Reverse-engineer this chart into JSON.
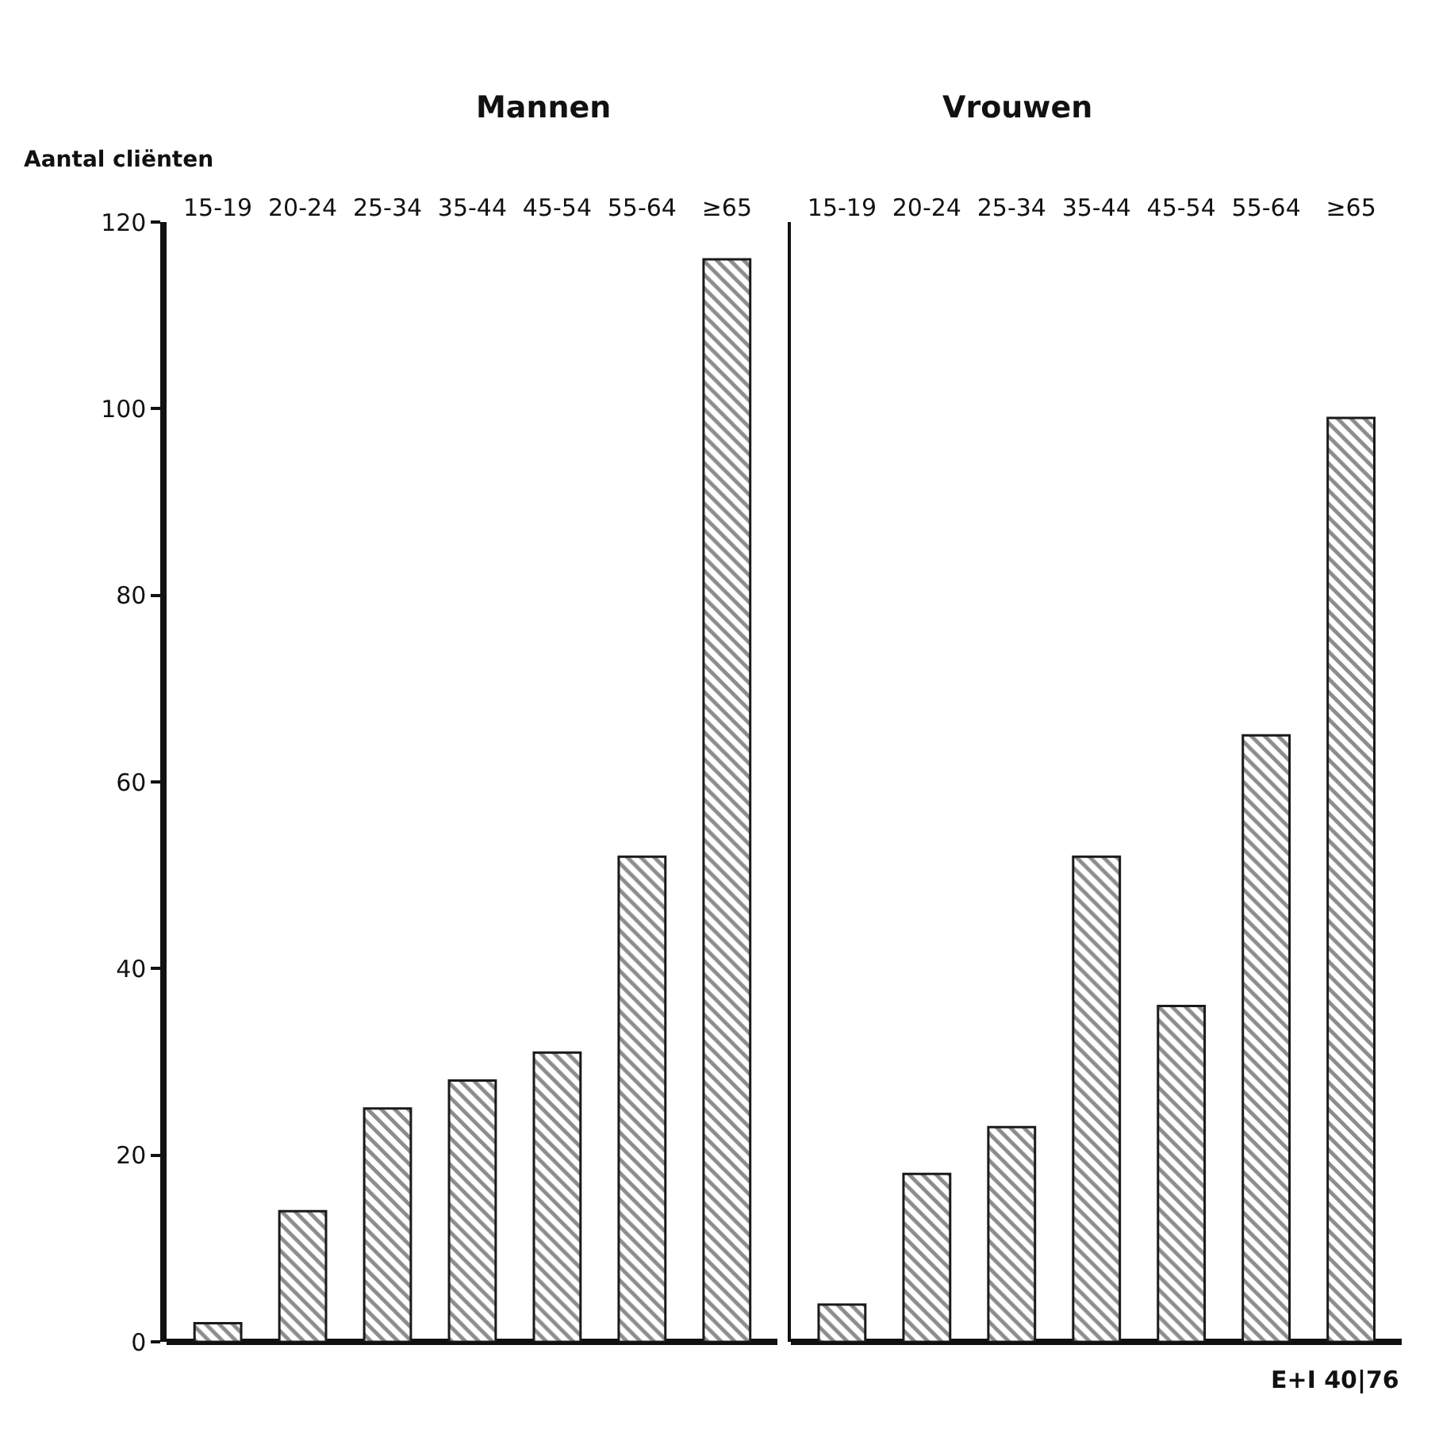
{
  "chart_data": [
    {
      "type": "bar",
      "title": "Mannen",
      "ylabel": "Aantal cliënten",
      "categories": [
        "15-19",
        "20-24",
        "25-34",
        "35-44",
        "45-54",
        "55-64",
        "≥65"
      ],
      "series": [
        {
          "color": "#1a1a1a",
          "values": [
            2,
            14,
            25,
            28,
            31,
            52,
            116
          ]
        }
      ],
      "ylim": [
        0,
        120
      ],
      "yticks": [
        0,
        20,
        40,
        60,
        80,
        100,
        120
      ]
    },
    {
      "type": "bar",
      "title": "Vrouwen",
      "categories": [
        "15-19",
        "20-24",
        "25-34",
        "35-44",
        "45-54",
        "55-64",
        "≥65"
      ],
      "series": [
        {
          "color": "#1a1a1a",
          "values": [
            4,
            18,
            23,
            52,
            36,
            65,
            99
          ]
        }
      ],
      "ylim": [
        0,
        120
      ],
      "yticks": [
        0,
        20,
        40,
        60,
        80,
        100,
        120
      ],
      "tick_labels": "x",
      "annotations": [
        "E+I 40|76"
      ]
    }
  ]
}
